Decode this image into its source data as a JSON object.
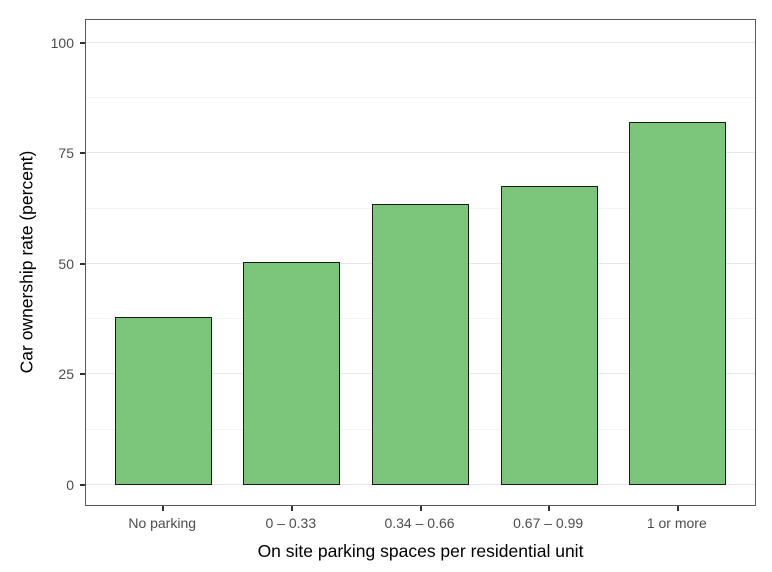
{
  "chart_data": {
    "type": "bar",
    "title": "",
    "categories": [
      "No parking",
      "0 – 0.33",
      "0.34 – 0.66",
      "0.67 – 0.99",
      "1 or more"
    ],
    "values": [
      38,
      50.5,
      63.5,
      67.5,
      82
    ],
    "xlabel": "On site parking spaces per residential unit",
    "ylabel": "Car ownership rate (percent)",
    "ylim": [
      0,
      100
    ],
    "yticks": [
      0,
      25,
      50,
      75,
      100
    ],
    "ytick_labels": [
      "0",
      "25",
      "50",
      "75",
      "100"
    ],
    "minor_gridlines": [
      12.5,
      37.5,
      62.5,
      87.5
    ],
    "grid": true,
    "legend_position": "none",
    "colors": {
      "bar_fill": "#7cc67c",
      "bar_border": "#1a1a1a",
      "panel_border": "#595959",
      "grid_major": "#e7e7e7",
      "grid_minor": "#f3f3f3",
      "tick_label": "#4d4d4d",
      "axis_title": "#000000",
      "background": "#ffffff"
    }
  }
}
